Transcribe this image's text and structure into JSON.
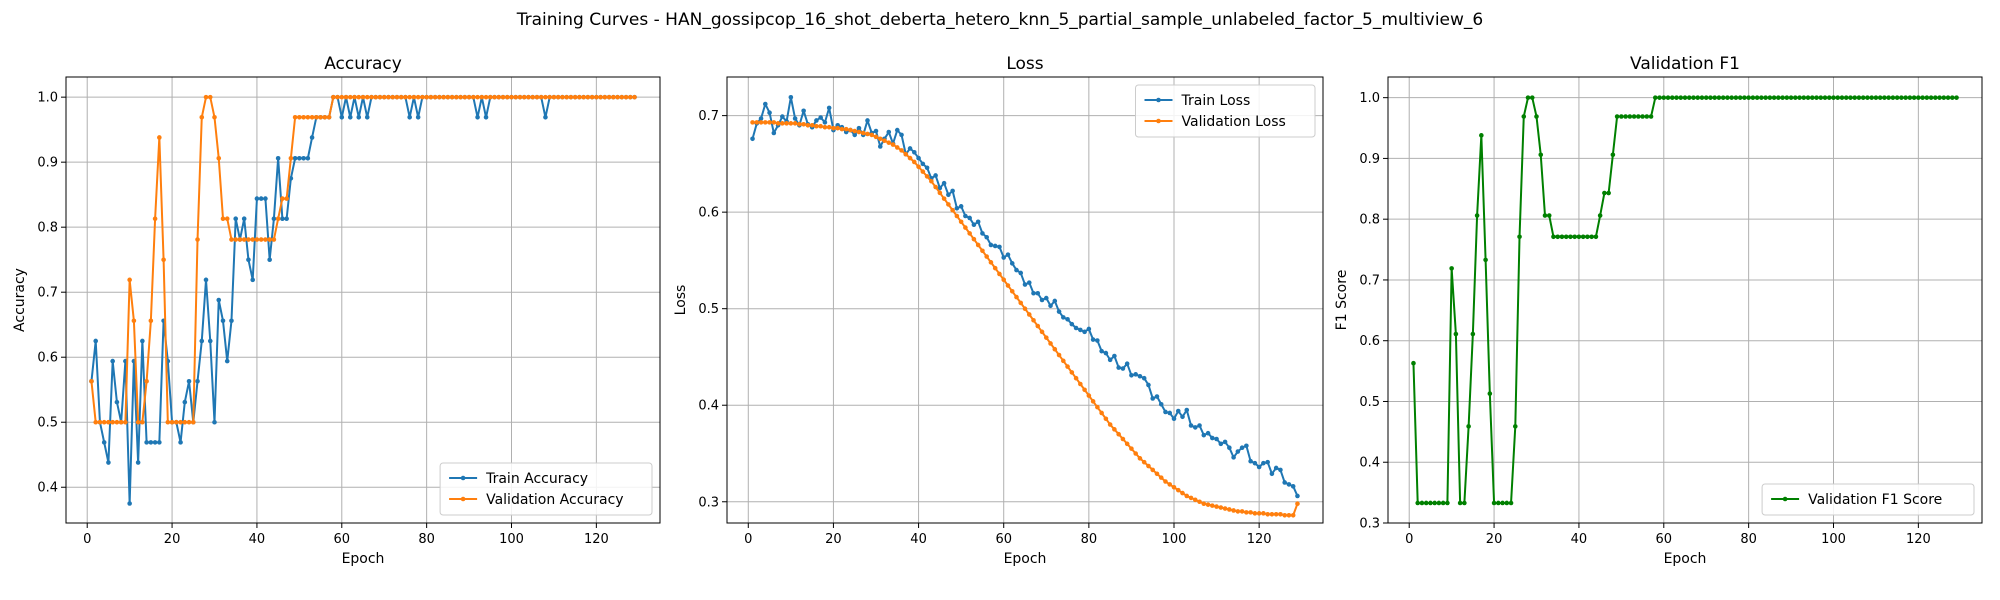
{
  "figure": {
    "suptitle": "Training Curves - HAN_gossipcop_16_shot_deberta_hetero_knn_5_partial_sample_unlabeled_factor_5_multiview_6"
  },
  "colors": {
    "train": "#1f77b4",
    "validation": "#ff7f0e",
    "f1": "#008000",
    "grid": "#b0b0b0"
  },
  "chart_data": [
    {
      "type": "line",
      "title": "Accuracy",
      "xlabel": "Epoch",
      "ylabel": "Accuracy",
      "xlim": [
        -5,
        135
      ],
      "ylim": [
        0.345,
        1.031
      ],
      "xticks": [
        0,
        20,
        40,
        60,
        80,
        100,
        120
      ],
      "yticks": [
        0.4,
        0.5,
        0.6,
        0.7,
        0.8,
        0.9,
        1.0
      ],
      "ytick_labels": [
        "0.4",
        "0.5",
        "0.6",
        "0.7",
        "0.8",
        "0.9",
        "1.0"
      ],
      "grid": true,
      "legend_position": "lower-right",
      "x_start": 1,
      "series": [
        {
          "name": "Train Accuracy",
          "color": "#1f77b4",
          "values": [
            0.563,
            0.625,
            0.5,
            0.469,
            0.438,
            0.594,
            0.531,
            0.5,
            0.594,
            0.375,
            0.594,
            0.438,
            0.625,
            0.469,
            0.469,
            0.469,
            0.469,
            0.656,
            0.594,
            0.5,
            0.5,
            0.469,
            0.531,
            0.563,
            0.5,
            0.563,
            0.625,
            0.719,
            0.625,
            0.5,
            0.688,
            0.656,
            0.594,
            0.656,
            0.813,
            0.781,
            0.813,
            0.75,
            0.719,
            0.844,
            0.844,
            0.844,
            0.75,
            0.813,
            0.906,
            0.813,
            0.813,
            0.875,
            0.906,
            0.906,
            0.906,
            0.906,
            0.938,
            0.969,
            0.969,
            0.969,
            0.969,
            1.0,
            1.0,
            0.969,
            1.0,
            0.969,
            1.0,
            0.969,
            1.0,
            0.969,
            1.0,
            1.0,
            1.0,
            1.0,
            1.0,
            1.0,
            1.0,
            1.0,
            1.0,
            0.969,
            1.0,
            0.969,
            1.0,
            1.0,
            1.0,
            1.0,
            1.0,
            1.0,
            1.0,
            1.0,
            1.0,
            1.0,
            1.0,
            1.0,
            1.0,
            0.969,
            1.0,
            0.969,
            1.0,
            1.0,
            1.0,
            1.0,
            1.0,
            1.0,
            1.0,
            1.0,
            1.0,
            1.0,
            1.0,
            1.0,
            1.0,
            0.969,
            1.0,
            1.0,
            1.0,
            1.0,
            1.0,
            1.0,
            1.0,
            1.0,
            1.0,
            1.0,
            1.0,
            1.0,
            1.0,
            1.0,
            1.0,
            1.0,
            1.0,
            1.0,
            1.0,
            1.0,
            1.0
          ]
        },
        {
          "name": "Validation Accuracy",
          "color": "#ff7f0e",
          "values": [
            0.563,
            0.5,
            0.5,
            0.5,
            0.5,
            0.5,
            0.5,
            0.5,
            0.5,
            0.719,
            0.656,
            0.5,
            0.5,
            0.563,
            0.656,
            0.813,
            0.938,
            0.75,
            0.5,
            0.5,
            0.5,
            0.5,
            0.5,
            0.5,
            0.5,
            0.781,
            0.969,
            1.0,
            1.0,
            0.969,
            0.906,
            0.813,
            0.813,
            0.781,
            0.781,
            0.781,
            0.781,
            0.781,
            0.781,
            0.781,
            0.781,
            0.781,
            0.781,
            0.781,
            0.813,
            0.844,
            0.844,
            0.906,
            0.969,
            0.969,
            0.969,
            0.969,
            0.969,
            0.969,
            0.969,
            0.969,
            0.969,
            1.0,
            1.0,
            1.0,
            1.0,
            1.0,
            1.0,
            1.0,
            1.0,
            1.0,
            1.0,
            1.0,
            1.0,
            1.0,
            1.0,
            1.0,
            1.0,
            1.0,
            1.0,
            1.0,
            1.0,
            1.0,
            1.0,
            1.0,
            1.0,
            1.0,
            1.0,
            1.0,
            1.0,
            1.0,
            1.0,
            1.0,
            1.0,
            1.0,
            1.0,
            1.0,
            1.0,
            1.0,
            1.0,
            1.0,
            1.0,
            1.0,
            1.0,
            1.0,
            1.0,
            1.0,
            1.0,
            1.0,
            1.0,
            1.0,
            1.0,
            1.0,
            1.0,
            1.0,
            1.0,
            1.0,
            1.0,
            1.0,
            1.0,
            1.0,
            1.0,
            1.0,
            1.0,
            1.0,
            1.0,
            1.0,
            1.0,
            1.0,
            1.0,
            1.0,
            1.0,
            1.0,
            1.0
          ]
        }
      ]
    },
    {
      "type": "line",
      "title": "Loss",
      "xlabel": "Epoch",
      "ylabel": "Loss",
      "xlim": [
        -5,
        135
      ],
      "ylim": [
        0.278,
        0.74
      ],
      "xticks": [
        0,
        20,
        40,
        60,
        80,
        100,
        120
      ],
      "yticks": [
        0.3,
        0.4,
        0.5,
        0.6,
        0.7
      ],
      "ytick_labels": [
        "0.3",
        "0.4",
        "0.5",
        "0.6",
        "0.7"
      ],
      "grid": true,
      "legend_position": "upper-right",
      "x_start": 1,
      "series": [
        {
          "name": "Train Loss",
          "color": "#1f77b4",
          "values": [
            0.676,
            0.692,
            0.697,
            0.712,
            0.703,
            0.682,
            0.69,
            0.699,
            0.694,
            0.719,
            0.697,
            0.69,
            0.705,
            0.691,
            0.688,
            0.695,
            0.698,
            0.693,
            0.708,
            0.685,
            0.69,
            0.688,
            0.683,
            0.685,
            0.68,
            0.687,
            0.68,
            0.695,
            0.682,
            0.684,
            0.668,
            0.676,
            0.683,
            0.671,
            0.685,
            0.68,
            0.66,
            0.666,
            0.662,
            0.656,
            0.65,
            0.646,
            0.635,
            0.638,
            0.625,
            0.63,
            0.618,
            0.622,
            0.604,
            0.606,
            0.596,
            0.594,
            0.587,
            0.59,
            0.578,
            0.574,
            0.566,
            0.565,
            0.564,
            0.553,
            0.556,
            0.547,
            0.54,
            0.537,
            0.525,
            0.527,
            0.516,
            0.516,
            0.509,
            0.511,
            0.503,
            0.508,
            0.497,
            0.491,
            0.489,
            0.484,
            0.48,
            0.478,
            0.476,
            0.479,
            0.468,
            0.467,
            0.456,
            0.454,
            0.447,
            0.451,
            0.439,
            0.438,
            0.443,
            0.431,
            0.432,
            0.43,
            0.428,
            0.421,
            0.407,
            0.409,
            0.401,
            0.393,
            0.392,
            0.386,
            0.394,
            0.388,
            0.395,
            0.379,
            0.377,
            0.379,
            0.369,
            0.371,
            0.366,
            0.365,
            0.36,
            0.362,
            0.356,
            0.346,
            0.352,
            0.356,
            0.358,
            0.342,
            0.34,
            0.336,
            0.34,
            0.341,
            0.329,
            0.335,
            0.333,
            0.32,
            0.318,
            0.316,
            0.306
          ]
        },
        {
          "name": "Validation Loss",
          "color": "#ff7f0e",
          "values": [
            0.693,
            0.693,
            0.693,
            0.693,
            0.693,
            0.693,
            0.692,
            0.692,
            0.692,
            0.692,
            0.692,
            0.691,
            0.691,
            0.69,
            0.69,
            0.689,
            0.689,
            0.688,
            0.688,
            0.687,
            0.687,
            0.686,
            0.686,
            0.685,
            0.684,
            0.683,
            0.682,
            0.681,
            0.68,
            0.678,
            0.676,
            0.674,
            0.672,
            0.67,
            0.667,
            0.664,
            0.66,
            0.656,
            0.652,
            0.647,
            0.642,
            0.637,
            0.632,
            0.626,
            0.62,
            0.614,
            0.608,
            0.602,
            0.596,
            0.59,
            0.584,
            0.578,
            0.572,
            0.566,
            0.56,
            0.554,
            0.548,
            0.542,
            0.536,
            0.53,
            0.524,
            0.518,
            0.512,
            0.506,
            0.5,
            0.494,
            0.488,
            0.482,
            0.476,
            0.47,
            0.464,
            0.458,
            0.452,
            0.446,
            0.44,
            0.434,
            0.428,
            0.422,
            0.416,
            0.41,
            0.404,
            0.398,
            0.392,
            0.386,
            0.38,
            0.375,
            0.37,
            0.365,
            0.36,
            0.355,
            0.35,
            0.345,
            0.341,
            0.337,
            0.333,
            0.329,
            0.325,
            0.321,
            0.318,
            0.315,
            0.312,
            0.309,
            0.306,
            0.304,
            0.302,
            0.3,
            0.298,
            0.297,
            0.296,
            0.295,
            0.294,
            0.293,
            0.292,
            0.291,
            0.29,
            0.29,
            0.289,
            0.289,
            0.288,
            0.288,
            0.288,
            0.287,
            0.287,
            0.287,
            0.287,
            0.286,
            0.286,
            0.286,
            0.298
          ]
        }
      ]
    },
    {
      "type": "line",
      "title": "Validation F1",
      "xlabel": "Epoch",
      "ylabel": "F1 Score",
      "xlim": [
        -5,
        135
      ],
      "ylim": [
        0.3,
        1.034
      ],
      "xticks": [
        0,
        20,
        40,
        60,
        80,
        100,
        120
      ],
      "yticks": [
        0.3,
        0.4,
        0.5,
        0.6,
        0.7,
        0.8,
        0.9,
        1.0
      ],
      "ytick_labels": [
        "0.3",
        "0.4",
        "0.5",
        "0.6",
        "0.7",
        "0.8",
        "0.9",
        "1.0"
      ],
      "grid": true,
      "legend_position": "lower-right",
      "x_start": 1,
      "series": [
        {
          "name": "Validation F1 Score",
          "color": "#008000",
          "values": [
            0.563,
            0.333,
            0.333,
            0.333,
            0.333,
            0.333,
            0.333,
            0.333,
            0.333,
            0.719,
            0.611,
            0.333,
            0.333,
            0.459,
            0.611,
            0.806,
            0.938,
            0.733,
            0.513,
            0.333,
            0.333,
            0.333,
            0.333,
            0.333,
            0.459,
            0.771,
            0.969,
            1.0,
            1.0,
            0.969,
            0.906,
            0.806,
            0.806,
            0.771,
            0.771,
            0.771,
            0.771,
            0.771,
            0.771,
            0.771,
            0.771,
            0.771,
            0.771,
            0.771,
            0.806,
            0.843,
            0.843,
            0.906,
            0.969,
            0.969,
            0.969,
            0.969,
            0.969,
            0.969,
            0.969,
            0.969,
            0.969,
            1.0,
            1.0,
            1.0,
            1.0,
            1.0,
            1.0,
            1.0,
            1.0,
            1.0,
            1.0,
            1.0,
            1.0,
            1.0,
            1.0,
            1.0,
            1.0,
            1.0,
            1.0,
            1.0,
            1.0,
            1.0,
            1.0,
            1.0,
            1.0,
            1.0,
            1.0,
            1.0,
            1.0,
            1.0,
            1.0,
            1.0,
            1.0,
            1.0,
            1.0,
            1.0,
            1.0,
            1.0,
            1.0,
            1.0,
            1.0,
            1.0,
            1.0,
            1.0,
            1.0,
            1.0,
            1.0,
            1.0,
            1.0,
            1.0,
            1.0,
            1.0,
            1.0,
            1.0,
            1.0,
            1.0,
            1.0,
            1.0,
            1.0,
            1.0,
            1.0,
            1.0,
            1.0,
            1.0,
            1.0,
            1.0,
            1.0,
            1.0,
            1.0,
            1.0,
            1.0,
            1.0,
            1.0
          ]
        }
      ]
    }
  ]
}
